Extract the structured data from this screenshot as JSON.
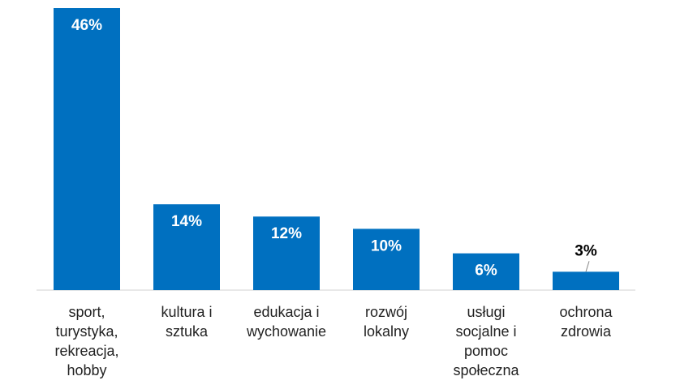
{
  "chart_data": {
    "type": "bar",
    "categories": [
      "sport, turystyka, rekreacja, hobby",
      "kultura i sztuka",
      "edukacja i wychowanie",
      "rozwój lokalny",
      "usługi socjalne i pomoc społeczna",
      "ochrona zdrowia"
    ],
    "values": [
      46,
      14,
      12,
      10,
      6,
      3
    ],
    "value_labels": [
      "46%",
      "14%",
      "12%",
      "10%",
      "6%",
      "3%"
    ],
    "color": "#0070c0"
  }
}
